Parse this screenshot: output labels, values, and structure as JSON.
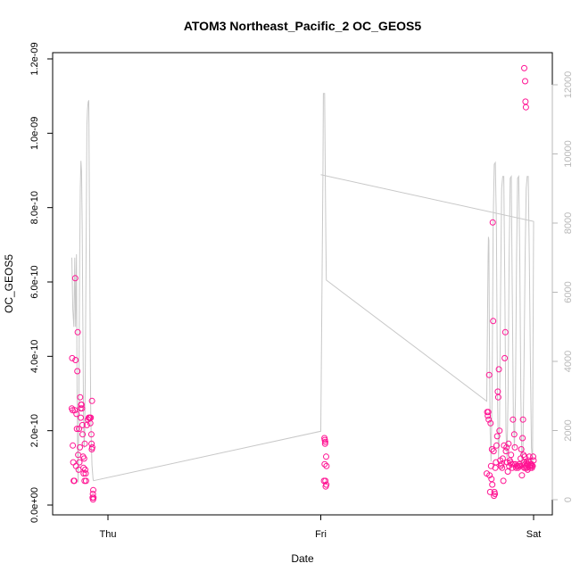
{
  "chart_data": {
    "type": "scatter",
    "title": "ATOM3 Northeast_Pacific_2 OC_GEOS5",
    "xlabel": "Date",
    "ylabel": "OC_GEOS5",
    "x_tick_labels": [
      "Thu",
      "Fri",
      "Sat"
    ],
    "y_tick_labels": [
      "0.0e+00",
      "2.0e-10",
      "4.0e-10",
      "6.0e-10",
      "8.0e-10",
      "1.0e-09",
      "1.2e-09"
    ],
    "y_ticks": [
      0,
      2e-10,
      4e-10,
      6e-10,
      8e-10,
      1e-09,
      1.2e-09
    ],
    "ylim": [
      0,
      1.2e-09
    ],
    "y2_tick_labels": [
      "0",
      "2000",
      "4000",
      "6000",
      "8000",
      "10000",
      "12000"
    ],
    "y2_ticks": [
      0,
      2000,
      4000,
      6000,
      8000,
      10000,
      12000
    ],
    "y2lim": [
      0,
      12000
    ],
    "xlim": [
      -0.2,
      2.05
    ],
    "x_ticks": [
      0,
      1,
      2
    ],
    "colors": {
      "points": "#ff1493",
      "altitude_line": "#c8c8c8",
      "axis": "#000000",
      "right_axis": "#b8b8b8"
    },
    "series": [
      {
        "points": [
          [
            -0.17,
            2.6e-10
          ],
          [
            -0.168,
            3.95e-10
          ],
          [
            -0.166,
            2.55e-10
          ],
          [
            -0.165,
            1.6e-10
          ],
          [
            -0.163,
            1.15e-10
          ],
          [
            -0.161,
            6.5e-11
          ],
          [
            -0.158,
            6.5e-11
          ],
          [
            -0.156,
            2.55e-10
          ],
          [
            -0.154,
            6.1e-10
          ],
          [
            -0.152,
            3.9e-10
          ],
          [
            -0.15,
            1.05e-10
          ],
          [
            -0.148,
            2.45e-10
          ],
          [
            -0.146,
            2.05e-10
          ],
          [
            -0.144,
            3.6e-10
          ],
          [
            -0.142,
            4.65e-10
          ],
          [
            -0.14,
            1.35e-10
          ],
          [
            -0.138,
            9.5e-11
          ],
          [
            -0.136,
            2.05e-10
          ],
          [
            -0.134,
            1.15e-10
          ],
          [
            -0.132,
            1.55e-10
          ],
          [
            -0.131,
            2.9e-10
          ],
          [
            -0.129,
            2.6e-10
          ],
          [
            -0.128,
            2.35e-10
          ],
          [
            -0.126,
            2.7e-10
          ],
          [
            -0.124,
            2.7e-10
          ],
          [
            -0.122,
            2.6e-10
          ],
          [
            -0.12,
            2.15e-10
          ],
          [
            -0.119,
            1.9e-10
          ],
          [
            -0.117,
            1.3e-10
          ],
          [
            -0.115,
            1e-10
          ],
          [
            -0.114,
            8.5e-11
          ],
          [
            -0.112,
            1.25e-10
          ],
          [
            -0.11,
            6.5e-11
          ],
          [
            -0.109,
            1.65e-10
          ],
          [
            -0.107,
            9.5e-11
          ],
          [
            -0.105,
            8.5e-11
          ],
          [
            -0.103,
            6.5e-11
          ],
          [
            -0.099,
            2.15e-10
          ],
          [
            -0.094,
            2.3e-10
          ],
          [
            -0.09,
            2.35e-10
          ],
          [
            -0.086,
            2.35e-10
          ],
          [
            -0.083,
            2.2e-10
          ],
          [
            -0.081,
            2.35e-10
          ],
          [
            -0.078,
            1.9e-10
          ],
          [
            -0.077,
            1.65e-10
          ],
          [
            -0.076,
            1.5e-10
          ],
          [
            -0.075,
            2.8e-10
          ],
          [
            -0.074,
            1.55e-10
          ],
          [
            -0.072,
            2e-11
          ],
          [
            -0.071,
            3e-11
          ],
          [
            -0.07,
            1.5e-11
          ],
          [
            -0.069,
            4e-11
          ],
          [
            -0.068,
            2e-11
          ],
          [
            1.015,
            6.5e-11
          ],
          [
            1.017,
            1.8e-10
          ],
          [
            1.018,
            1.1e-10
          ],
          [
            1.019,
            1.75e-10
          ],
          [
            1.02,
            1.65e-10
          ],
          [
            1.021,
            1.7e-10
          ],
          [
            1.022,
            6.5e-11
          ],
          [
            1.023,
            5e-11
          ],
          [
            1.025,
            1.3e-10
          ],
          [
            1.026,
            5.5e-11
          ],
          [
            1.027,
            1.05e-10
          ],
          [
            1.78,
            8.5e-11
          ],
          [
            1.782,
            2.5e-10
          ],
          [
            1.785,
            2.4e-10
          ],
          [
            1.787,
            2.5e-10
          ],
          [
            1.789,
            2.3e-10
          ],
          [
            1.791,
            3.5e-10
          ],
          [
            1.793,
            8e-11
          ],
          [
            1.796,
            3.5e-11
          ],
          [
            1.798,
            2.2e-10
          ],
          [
            1.8,
            1.05e-10
          ],
          [
            1.802,
            7e-11
          ],
          [
            1.804,
            1.5e-10
          ],
          [
            1.806,
            5.5e-11
          ],
          [
            1.808,
            7.6e-10
          ],
          [
            1.81,
            4.95e-10
          ],
          [
            1.812,
            1.45e-10
          ],
          [
            1.814,
            2.5e-11
          ],
          [
            1.816,
            3.5e-11
          ],
          [
            1.818,
            3e-11
          ],
          [
            1.82,
            1e-10
          ],
          [
            1.823,
            1.15e-10
          ],
          [
            1.826,
            1.6e-10
          ],
          [
            1.829,
            1.85e-10
          ],
          [
            1.832,
            3.05e-10
          ],
          [
            1.834,
            2.9e-10
          ],
          [
            1.837,
            3.65e-10
          ],
          [
            1.84,
            2e-10
          ],
          [
            1.843,
            1.2e-10
          ],
          [
            1.846,
            1.05e-10
          ],
          [
            1.849,
            1.1e-10
          ],
          [
            1.852,
            1e-10
          ],
          [
            1.855,
            1.25e-10
          ],
          [
            1.858,
            6.5e-11
          ],
          [
            1.861,
            1.6e-10
          ],
          [
            1.864,
            3.95e-10
          ],
          [
            1.867,
            4.65e-10
          ],
          [
            1.87,
            1.45e-10
          ],
          [
            1.873,
            1.55e-10
          ],
          [
            1.876,
            1.15e-10
          ],
          [
            1.879,
            9e-11
          ],
          [
            1.882,
            1.65e-10
          ],
          [
            1.885,
            1.05e-10
          ],
          [
            1.888,
            1.2e-10
          ],
          [
            1.891,
            1.15e-10
          ],
          [
            1.894,
            1.35e-10
          ],
          [
            1.897,
            1.1e-10
          ],
          [
            1.9,
            1e-10
          ],
          [
            1.903,
            2.3e-10
          ],
          [
            1.906,
            1.1e-10
          ],
          [
            1.909,
            1.9e-10
          ],
          [
            1.912,
            1.55e-10
          ],
          [
            1.915,
            1.1e-10
          ],
          [
            1.918,
            1e-10
          ],
          [
            1.921,
            1.05e-10
          ],
          [
            1.924,
            1.05e-10
          ],
          [
            1.927,
            1e-10
          ],
          [
            1.93,
            1.05e-10
          ],
          [
            1.933,
            1.1e-10
          ],
          [
            1.936,
            1.05e-10
          ],
          [
            1.939,
            1.25e-10
          ],
          [
            1.942,
            1.5e-10
          ],
          [
            1.945,
            8e-11
          ],
          [
            1.948,
            1.8e-10
          ],
          [
            1.95,
            2.3e-10
          ],
          [
            1.952,
            1.35e-10
          ],
          [
            1.954,
            1.15e-10
          ],
          [
            1.956,
            1e-10
          ],
          [
            1.958,
            1.3e-10
          ],
          [
            1.96,
            1.1e-10
          ],
          [
            1.962,
            1e-10
          ],
          [
            1.964,
            1.05e-10
          ],
          [
            1.966,
            1.15e-10
          ],
          [
            1.968,
            1e-10
          ],
          [
            1.97,
            1.1e-10
          ],
          [
            1.972,
            9.5e-11
          ],
          [
            1.974,
            1.1e-10
          ],
          [
            1.976,
            1.2e-10
          ],
          [
            1.978,
            1.15e-10
          ],
          [
            1.98,
            1.3e-10
          ],
          [
            1.982,
            1.05e-10
          ],
          [
            1.984,
            1e-10
          ],
          [
            1.986,
            1.1e-10
          ],
          [
            1.988,
            1.05e-10
          ],
          [
            1.99,
            1.1e-10
          ],
          [
            1.992,
            1e-10
          ],
          [
            1.994,
            1.05e-10
          ],
          [
            1.996,
            1.05e-10
          ],
          [
            1.998,
            1.3e-10
          ],
          [
            2.0,
            1.2e-10
          ],
          [
            1.956,
            1.175e-09
          ],
          [
            1.96,
            1.14e-09
          ],
          [
            1.962,
            1.085e-09
          ],
          [
            1.964,
            1.07e-09
          ]
        ]
      },
      {
        "line_y2": [
          [
            -0.17,
            7000
          ],
          [
            -0.165,
            5500
          ],
          [
            -0.16,
            5000
          ],
          [
            -0.156,
            7000
          ],
          [
            -0.152,
            5000
          ],
          [
            -0.148,
            7100
          ],
          [
            -0.145,
            3000
          ],
          [
            -0.142,
            1000
          ],
          [
            -0.14,
            500
          ],
          [
            -0.137,
            2500
          ],
          [
            -0.133,
            7000
          ],
          [
            -0.13,
            9000
          ],
          [
            -0.127,
            9800
          ],
          [
            -0.124,
            9500
          ],
          [
            -0.121,
            8000
          ],
          [
            -0.118,
            5000
          ],
          [
            -0.115,
            2500
          ],
          [
            -0.112,
            1500
          ],
          [
            -0.109,
            2000
          ],
          [
            -0.106,
            4000
          ],
          [
            -0.102,
            8000
          ],
          [
            -0.099,
            10800
          ],
          [
            -0.096,
            11300
          ],
          [
            -0.093,
            11500
          ],
          [
            -0.09,
            11550
          ],
          [
            -0.087,
            8000
          ],
          [
            -0.084,
            5000
          ],
          [
            -0.081,
            2500
          ],
          [
            -0.078,
            1600
          ],
          [
            -0.075,
            1000
          ],
          [
            -0.07,
            600
          ],
          [
            -0.068,
            550
          ],
          [
            1.0,
            1980
          ],
          [
            1.01,
            9350
          ],
          [
            1.012,
            11750
          ],
          [
            1.018,
            11750
          ],
          [
            1.021,
            9500
          ],
          [
            1.024,
            7500
          ],
          [
            1.026,
            6350
          ],
          [
            1.78,
            2850
          ],
          [
            1.786,
            7000
          ],
          [
            1.788,
            7600
          ],
          [
            1.79,
            7500
          ],
          [
            1.792,
            5000
          ],
          [
            1.796,
            2000
          ],
          [
            1.8,
            1100
          ],
          [
            1.805,
            3000
          ],
          [
            1.81,
            8000
          ],
          [
            1.815,
            9700
          ],
          [
            1.82,
            9750
          ],
          [
            1.825,
            8000
          ],
          [
            1.83,
            3000
          ],
          [
            1.835,
            1200
          ],
          [
            1.84,
            2000
          ],
          [
            1.845,
            6000
          ],
          [
            1.85,
            9000
          ],
          [
            1.855,
            9350
          ],
          [
            1.86,
            9350
          ],
          [
            1.865,
            6000
          ],
          [
            1.87,
            2000
          ],
          [
            1.875,
            1200
          ],
          [
            1.88,
            3000
          ],
          [
            1.885,
            7000
          ],
          [
            1.89,
            9300
          ],
          [
            1.895,
            9350
          ],
          [
            1.9,
            6000
          ],
          [
            1.905,
            2500
          ],
          [
            1.91,
            1500
          ],
          [
            1.915,
            3000
          ],
          [
            1.92,
            7000
          ],
          [
            1.925,
            9300
          ],
          [
            1.93,
            9350
          ],
          [
            1.935,
            7000
          ],
          [
            1.94,
            3000
          ],
          [
            1.945,
            1000
          ],
          [
            1.95,
            1500
          ],
          [
            1.955,
            4000
          ],
          [
            1.96,
            7000
          ],
          [
            1.965,
            9000
          ],
          [
            1.97,
            9350
          ],
          [
            1.975,
            9350
          ],
          [
            1.98,
            7000
          ],
          [
            1.985,
            4000
          ],
          [
            1.99,
            1500
          ],
          [
            1.995,
            1100
          ],
          [
            2.0,
            8050
          ],
          [
            1.0,
            9400
          ]
        ]
      }
    ]
  }
}
